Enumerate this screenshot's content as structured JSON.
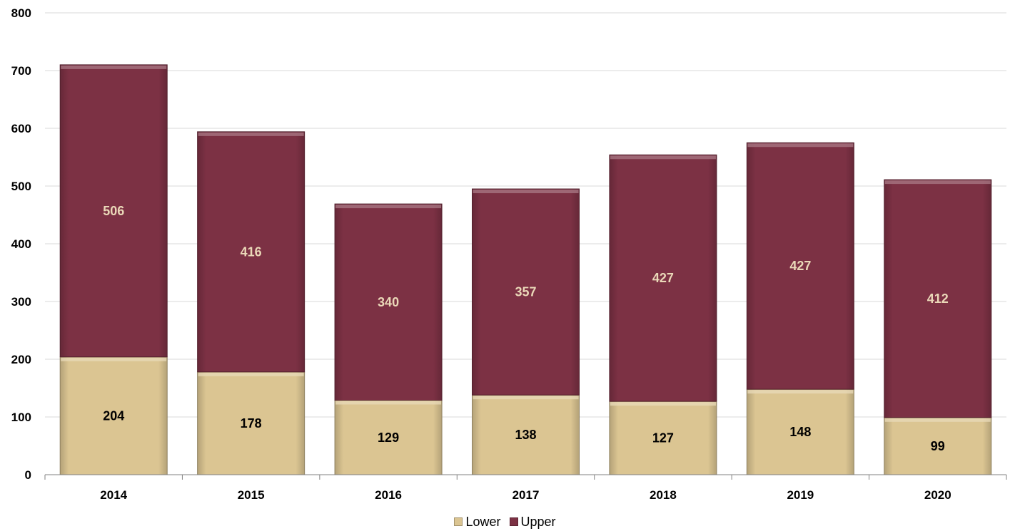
{
  "chart_data": {
    "type": "bar",
    "stacked": true,
    "categories": [
      "2014",
      "2015",
      "2016",
      "2017",
      "2018",
      "2019",
      "2020"
    ],
    "series": [
      {
        "name": "Lower",
        "values": [
          204,
          178,
          129,
          138,
          127,
          148,
          99
        ],
        "color": "#DBC592",
        "label_color": "#000000"
      },
      {
        "name": "Upper",
        "values": [
          506,
          416,
          340,
          357,
          427,
          427,
          412
        ],
        "color": "#7C3144",
        "label_color": "#EAD8B8"
      }
    ],
    "ylim": [
      0,
      800
    ],
    "yticks": [
      "0",
      "100",
      "200",
      "300",
      "400",
      "500",
      "600",
      "700",
      "800"
    ],
    "grid": true,
    "legend_position": "bottom",
    "title": "",
    "xlabel": "",
    "ylabel": ""
  }
}
